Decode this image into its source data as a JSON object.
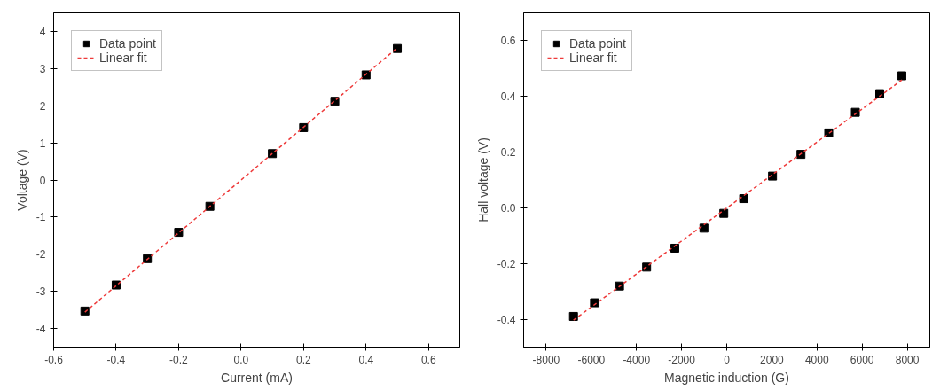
{
  "chart_data": [
    {
      "type": "scatter",
      "xlabel": "Current (mA)",
      "ylabel": "Voltage (V)",
      "xlim": [
        -0.6,
        0.7
      ],
      "ylim": [
        -4.5,
        4.5
      ],
      "xticks": [
        -0.6,
        -0.4,
        -0.2,
        {
          "value": 0,
          "label": "0.0"
        },
        0.2,
        0.4,
        0.6
      ],
      "yticks": [
        -4,
        -3,
        -2,
        -1,
        0,
        1,
        2,
        3,
        4
      ],
      "grid": false,
      "legend": "top left",
      "series": [
        {
          "name": "Data point",
          "marker": "square",
          "color": "#000000",
          "x": [
            -0.5,
            -0.4,
            -0.3,
            -0.2,
            -0.1,
            0.1,
            0.2,
            0.3,
            0.4,
            0.5
          ],
          "values": [
            -3.53,
            -2.83,
            -2.12,
            -1.41,
            -0.71,
            0.71,
            1.41,
            2.12,
            2.83,
            3.54
          ]
        },
        {
          "name": "Linear fit",
          "type": "line",
          "marker": "none",
          "line_style": "dashed",
          "color": "#ee3b3b",
          "x": [
            -0.5,
            0.5
          ],
          "values": [
            -3.56,
            3.56
          ]
        }
      ]
    },
    {
      "type": "scatter",
      "xlabel": "Magnetic induction (G)",
      "ylabel": "Hall voltage (V)",
      "xlim": [
        -9000,
        9000
      ],
      "ylim": [
        -0.5,
        0.7
      ],
      "xticks": [
        -8000,
        -6000,
        -4000,
        -2000,
        0,
        2000,
        4000,
        6000,
        8000
      ],
      "yticks": [
        -0.4,
        -0.2,
        {
          "value": 0,
          "label": "0.0"
        },
        0.2,
        0.4,
        0.6
      ],
      "grid": false,
      "legend": "top left",
      "series": [
        {
          "name": "Data point",
          "marker": "square",
          "color": "#000000",
          "x": [
            -6790,
            -5860,
            -4750,
            -3550,
            -2300,
            -1010,
            -130,
            750,
            2030,
            3290,
            4520,
            5700,
            6780,
            7760
          ],
          "values": [
            -0.39,
            -0.341,
            -0.281,
            -0.213,
            -0.145,
            -0.073,
            -0.02,
            0.033,
            0.114,
            0.192,
            0.269,
            0.343,
            0.41,
            0.474
          ]
        },
        {
          "name": "Linear fit",
          "type": "line",
          "marker": "none",
          "line_style": "dashed",
          "color": "#ee3b3b",
          "x": [
            -6790,
            7760
          ],
          "values": [
            -0.403,
            0.459
          ]
        }
      ]
    }
  ]
}
